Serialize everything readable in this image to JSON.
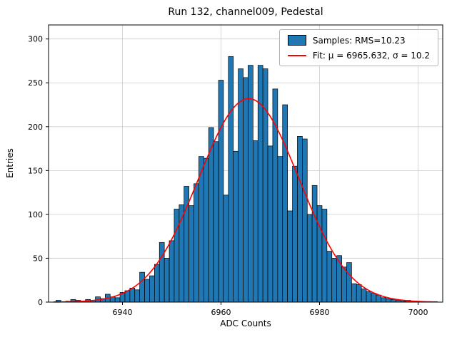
{
  "title": "Run 132, channel009, Pedestal",
  "legend": {
    "samples_label": "Samples: RMS=10.23",
    "fit_label": "Fit: μ = 6965.632, σ = 10.2"
  },
  "chart_data": {
    "type": "bar",
    "subtype": "histogram",
    "title": "Run 132, channel009, Pedestal",
    "xlabel": "ADC Counts",
    "ylabel": "Entries",
    "xlim": [
      6925,
      7005
    ],
    "ylim": [
      0,
      316
    ],
    "xticks": [
      6940,
      6960,
      6980,
      7000
    ],
    "yticks": [
      0,
      50,
      100,
      150,
      200,
      250,
      300
    ],
    "grid": true,
    "legend_position": "upper right",
    "bar_color": "#1f77b4",
    "bar_edge_color": "#000000",
    "fit_color": "#ff0000",
    "grid_color": "#cccccc",
    "bin_width": 1,
    "bin_centers": [
      6927,
      6928,
      6929,
      6930,
      6931,
      6932,
      6933,
      6934,
      6935,
      6936,
      6937,
      6938,
      6939,
      6940,
      6941,
      6942,
      6943,
      6944,
      6945,
      6946,
      6947,
      6948,
      6949,
      6950,
      6951,
      6952,
      6953,
      6954,
      6955,
      6956,
      6957,
      6958,
      6959,
      6960,
      6961,
      6962,
      6963,
      6964,
      6965,
      6966,
      6967,
      6968,
      6969,
      6970,
      6971,
      6972,
      6973,
      6974,
      6975,
      6976,
      6977,
      6978,
      6979,
      6980,
      6981,
      6982,
      6983,
      6984,
      6985,
      6986,
      6987,
      6988,
      6989,
      6990,
      6991,
      6992,
      6993,
      6994,
      6995,
      6996,
      6997,
      6998,
      6999,
      7000
    ],
    "counts": [
      2,
      0,
      1,
      3,
      2,
      1,
      3,
      2,
      6,
      4,
      9,
      6,
      5,
      11,
      13,
      16,
      14,
      34,
      26,
      30,
      43,
      68,
      50,
      70,
      106,
      111,
      132,
      110,
      135,
      166,
      164,
      199,
      183,
      253,
      122,
      280,
      172,
      266,
      256,
      270,
      184,
      270,
      266,
      178,
      243,
      166,
      225,
      104,
      155,
      189,
      186,
      100,
      133,
      110,
      106,
      58,
      50,
      53,
      40,
      45,
      21,
      20,
      15,
      12,
      10,
      8,
      5,
      4,
      3,
      2,
      1,
      2,
      1,
      1
    ],
    "fit": {
      "mu": 6965.632,
      "sigma": 10.2,
      "rms": 10.23,
      "amplitude": 232,
      "x_start": 6926,
      "x_end": 7004
    }
  }
}
